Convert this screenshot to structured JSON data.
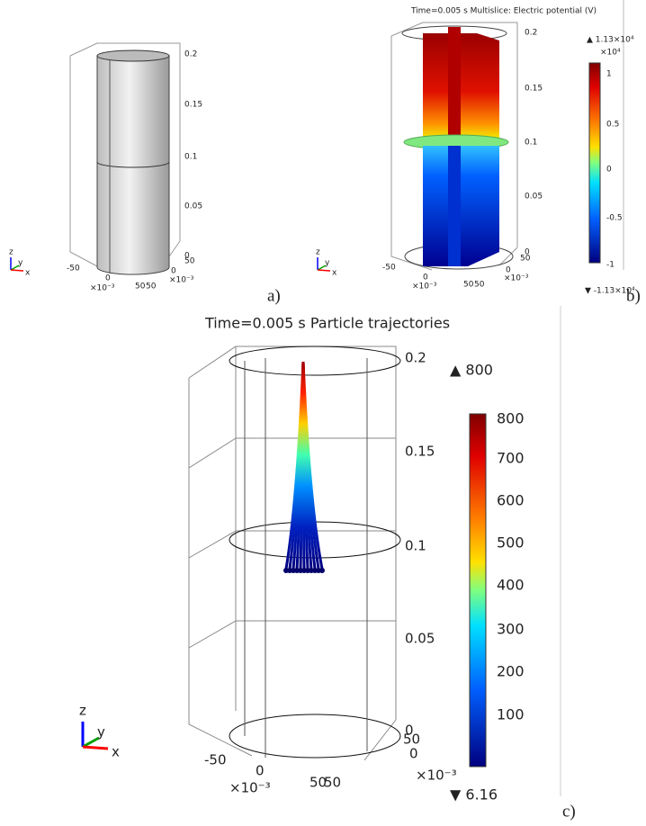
{
  "panel_a": {
    "label": "a)",
    "z_ticks": [
      "0.2",
      "0.15",
      "0.1",
      "0.05",
      "0"
    ],
    "x_ticks": [
      "-50",
      "0",
      "50"
    ],
    "x_exponent": "×10⁻³",
    "y_ticks": [
      "50",
      "0",
      "50"
    ],
    "y_exponent": "×10⁻³",
    "triad": [
      "z",
      "y",
      "x"
    ]
  },
  "panel_b": {
    "label": "b)",
    "title": "Time=0.005 s   Multislice: Electric potential (V)",
    "z_ticks": [
      "0.2",
      "0.15",
      "0.1",
      "0.05",
      "0"
    ],
    "x_ticks": [
      "-50",
      "0",
      "50"
    ],
    "x_exponent": "×10⁻³",
    "y_ticks": [
      "50",
      "0",
      "50"
    ],
    "y_exponent": "×10⁻³",
    "triad": [
      "z",
      "y",
      "x"
    ],
    "colorbar_max": "▲ 1.13×10⁴",
    "colorbar_exponent": "×10⁴",
    "colorbar_ticks": [
      "1",
      "0.5",
      "0",
      "-0.5",
      "-1"
    ],
    "colorbar_min": "▼ -1.13×10⁴"
  },
  "panel_c": {
    "label": "c)",
    "title": "Time=0.005 s  Particle trajectories",
    "z_ticks": [
      "0.2",
      "0.15",
      "0.1",
      "0.05",
      "0"
    ],
    "x_ticks": [
      "-50",
      "0",
      "50"
    ],
    "x_exponent": "×10⁻³",
    "y_ticks": [
      "50",
      "0",
      "50"
    ],
    "y_exponent": "×10⁻³",
    "triad": [
      "z",
      "y",
      "x"
    ],
    "colorbar_max": "▲ 800",
    "colorbar_ticks": [
      "800",
      "700",
      "600",
      "500",
      "400",
      "300",
      "200",
      "100"
    ],
    "colorbar_min": "▼ 6.16"
  }
}
